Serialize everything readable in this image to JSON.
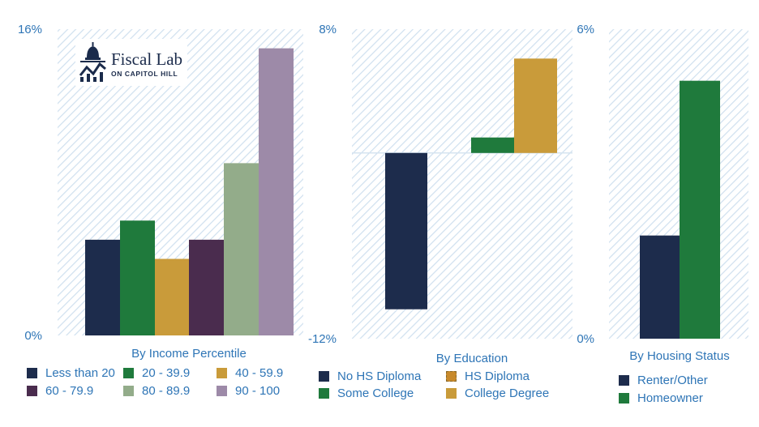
{
  "logo": {
    "main": "Fiscal Lab",
    "sub": "ON CAPITOL HILL"
  },
  "colors": {
    "axis_text": "#2e75b6",
    "plot_hatch": "#cfe0ef",
    "zero_line": "#d6e4f0"
  },
  "chart_data": [
    {
      "type": "bar",
      "xlabel": "By Income Percentile",
      "ylim": [
        0,
        16
      ],
      "yticks": [
        "16%",
        "0%"
      ],
      "categories": [
        "Less than 20",
        "20 - 39.9",
        "40 - 59.9",
        "60 - 79.9",
        "80 - 89.9",
        "90 - 100"
      ],
      "values": [
        5.0,
        6.0,
        4.0,
        5.0,
        9.0,
        15.0
      ],
      "colors": [
        "#1d2c4c",
        "#1f7a3c",
        "#c99b3a",
        "#4a2c4e",
        "#93ac8a",
        "#9d8aa8"
      ],
      "legend": {
        "rows": [
          [
            "Less than 20",
            "20 - 39.9",
            "40 - 59.9"
          ],
          [
            "60 - 79.9",
            "80 - 89.9",
            "90 - 100"
          ]
        ]
      }
    },
    {
      "type": "bar",
      "xlabel": "By Education",
      "ylim": [
        -12,
        8
      ],
      "yticks": [
        "8%",
        "-12%"
      ],
      "categories": [
        "No HS Diploma",
        "HS Diploma",
        "Some College",
        "College Degree"
      ],
      "values": [
        -10.1,
        0.0,
        1.0,
        6.1
      ],
      "colors": [
        "#1d2c4c",
        "#c88a2c",
        "#1f7a3c",
        "#c99b3a"
      ],
      "legend": {
        "rows": [
          [
            "No HS Diploma",
            "HS Diploma"
          ],
          [
            "Some College",
            "College Degree"
          ]
        ]
      }
    },
    {
      "type": "bar",
      "xlabel": "By Housing Status",
      "ylim": [
        0,
        6
      ],
      "yticks": [
        "6%",
        "0%"
      ],
      "categories": [
        "Renter/Other",
        "Homeowner"
      ],
      "values": [
        2.0,
        5.0
      ],
      "colors": [
        "#1d2c4c",
        "#1f7a3c"
      ],
      "legend": {
        "rows": [
          [
            "Renter/Other"
          ],
          [
            "Homeowner"
          ]
        ]
      }
    }
  ]
}
